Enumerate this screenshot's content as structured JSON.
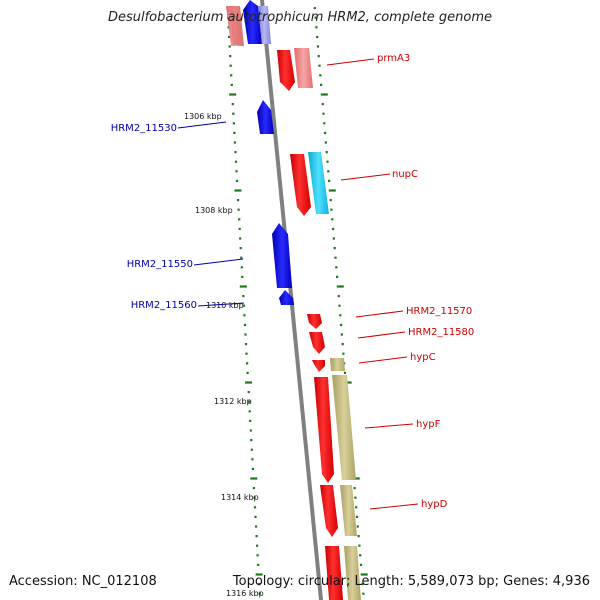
{
  "title": "Desulfobacterium autotrophicum HRM2, complete genome",
  "footer": {
    "accession": "Accession: NC_012108",
    "topology": "Topology: circular; Length: 5,589,073 bp; Genes: 4,936"
  },
  "colors": {
    "backbone": "#808080",
    "tick": "#1a7a1a",
    "forward_label": "#cc0000",
    "reverse_label": "#0000aa",
    "forward_gene": "#ff1a1a",
    "forward_gene_light": "#f08a8a",
    "reverse_gene": "#1010e0",
    "reverse_gene_light": "#8f8fe8",
    "cyan_gene": "#19c8f0",
    "khaki_gene": "#c8bf86"
  },
  "scale_labels": [
    {
      "label": "1306 kbp"
    },
    {
      "label": "1308 kbp"
    },
    {
      "label": "1310 kbp"
    },
    {
      "label": "1312 kbp"
    },
    {
      "label": "1314 kbp"
    },
    {
      "label": "1316 kbp"
    }
  ],
  "gene_labels": [
    {
      "name": "prmA3",
      "strand": "forward"
    },
    {
      "name": "HRM2_11530",
      "strand": "reverse"
    },
    {
      "name": "nupC",
      "strand": "forward"
    },
    {
      "name": "HRM2_11550",
      "strand": "reverse"
    },
    {
      "name": "HRM2_11560",
      "strand": "reverse"
    },
    {
      "name": "HRM2_11570",
      "strand": "forward"
    },
    {
      "name": "HRM2_11580",
      "strand": "forward"
    },
    {
      "name": "hypC",
      "strand": "forward"
    },
    {
      "name": "hypF",
      "strand": "forward"
    },
    {
      "name": "hypD",
      "strand": "forward"
    }
  ]
}
